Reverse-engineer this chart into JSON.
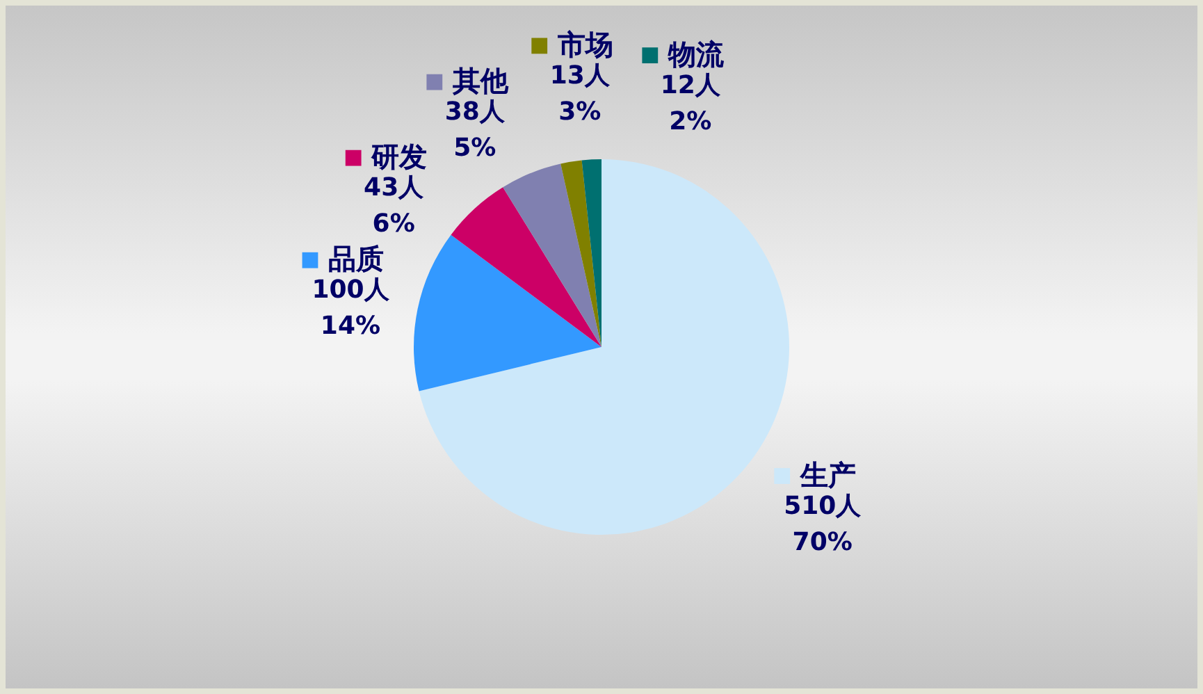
{
  "chart_data": {
    "type": "pie",
    "categories": [
      "生产",
      "品质",
      "研发",
      "其他",
      "市场",
      "物流"
    ],
    "values": [
      510,
      100,
      43,
      38,
      13,
      12
    ],
    "colors": [
      "#cce8fa",
      "#3399ff",
      "#cc0066",
      "#8080b0",
      "#808000",
      "#007070"
    ],
    "value_labels": [
      "510人\n70%",
      "100人\n14%",
      "43人\n6%",
      "38人\n5%",
      "13人\n3%",
      "12人\n2%"
    ],
    "legend": "top left"
  }
}
